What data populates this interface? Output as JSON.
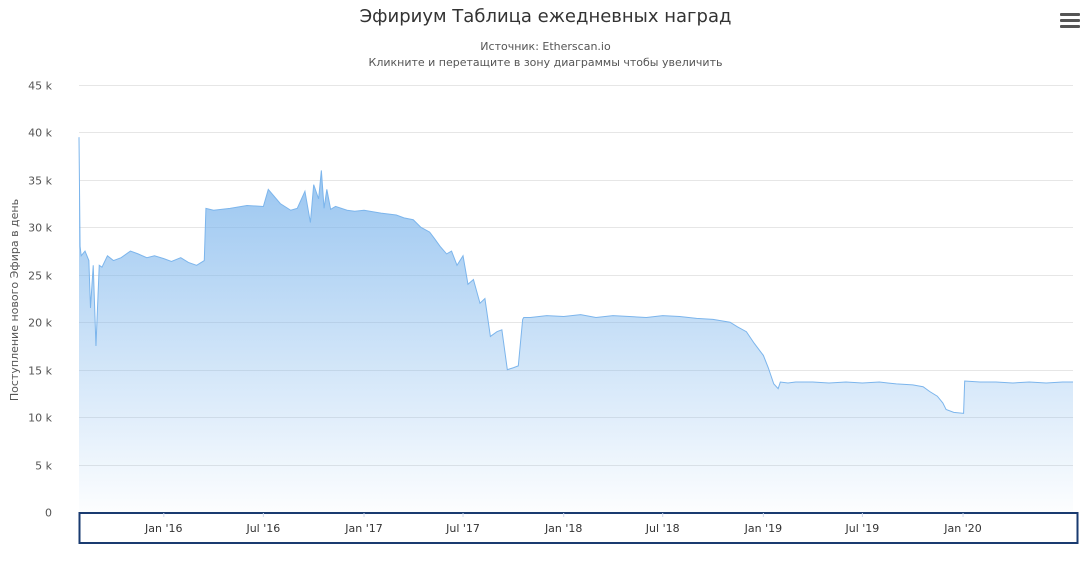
{
  "chart_data": {
    "type": "area",
    "title": "Эфириум Таблица ежедневных наград",
    "subtitle": "Источник: Etherscan.io",
    "caption": "Кликните и перетащите в зону диаграммы чтобы увеличить",
    "ylabel": "Поступление нового Эфира в день",
    "xlabel": "",
    "ylim": [
      0,
      45000
    ],
    "y_ticks": [
      0,
      5000,
      10000,
      15000,
      20000,
      25000,
      30000,
      35000,
      40000,
      45000
    ],
    "y_tick_labels": [
      "0",
      "5 k",
      "10 k",
      "15 k",
      "20 k",
      "25 k",
      "30 k",
      "35 k",
      "40 k",
      "45 k"
    ],
    "x_range": [
      "2015-07-30",
      "2020-07-20"
    ],
    "x_ticks": [
      "2016-01-01",
      "2016-07-01",
      "2017-01-01",
      "2017-07-01",
      "2018-01-01",
      "2018-07-01",
      "2019-01-01",
      "2019-07-01",
      "2020-01-01"
    ],
    "x_tick_labels": [
      "Jan '16",
      "Jul '16",
      "Jan '17",
      "Jul '17",
      "Jan '18",
      "Jul '18",
      "Jan '19",
      "Jul '19",
      "Jan '20"
    ],
    "grid": true,
    "legend": "none",
    "color": "#7cb5ec",
    "series": [
      {
        "x": [
          "2015-07-30",
          "2015-08-01",
          "2015-08-03",
          "2015-08-10",
          "2015-08-17",
          "2015-08-20",
          "2015-08-25",
          "2015-08-30",
          "2015-09-05",
          "2015-09-10",
          "2015-09-20",
          "2015-10-01",
          "2015-10-15",
          "2015-11-01",
          "2015-11-15",
          "2015-12-01",
          "2015-12-15",
          "2016-01-01",
          "2016-01-15",
          "2016-02-01",
          "2016-02-15",
          "2016-03-01",
          "2016-03-15",
          "2016-03-18",
          "2016-04-01",
          "2016-05-01",
          "2016-06-01",
          "2016-07-01",
          "2016-07-10",
          "2016-08-01",
          "2016-08-20",
          "2016-09-01",
          "2016-09-15",
          "2016-09-25",
          "2016-10-01",
          "2016-10-10",
          "2016-10-15",
          "2016-10-20",
          "2016-10-25",
          "2016-11-01",
          "2016-11-10",
          "2016-12-01",
          "2016-12-15",
          "2017-01-01",
          "2017-02-01",
          "2017-03-01",
          "2017-03-15",
          "2017-04-01",
          "2017-04-15",
          "2017-05-01",
          "2017-05-10",
          "2017-05-20",
          "2017-06-01",
          "2017-06-10",
          "2017-06-20",
          "2017-07-01",
          "2017-07-10",
          "2017-07-20",
          "2017-08-01",
          "2017-08-10",
          "2017-08-20",
          "2017-09-01",
          "2017-09-10",
          "2017-09-20",
          "2017-10-01",
          "2017-10-10",
          "2017-10-18",
          "2017-10-20",
          "2017-11-01",
          "2017-12-01",
          "2018-01-01",
          "2018-02-01",
          "2018-03-01",
          "2018-04-01",
          "2018-05-01",
          "2018-06-01",
          "2018-07-01",
          "2018-08-01",
          "2018-09-01",
          "2018-10-01",
          "2018-11-01",
          "2018-11-15",
          "2018-12-01",
          "2018-12-15",
          "2019-01-01",
          "2019-01-10",
          "2019-01-20",
          "2019-01-28",
          "2019-02-01",
          "2019-02-15",
          "2019-03-01",
          "2019-04-01",
          "2019-05-01",
          "2019-06-01",
          "2019-07-01",
          "2019-08-01",
          "2019-09-01",
          "2019-10-01",
          "2019-10-20",
          "2019-11-01",
          "2019-11-15",
          "2019-11-25",
          "2019-12-01",
          "2019-12-15",
          "2020-01-02",
          "2020-01-04",
          "2020-02-01",
          "2020-03-01",
          "2020-04-01",
          "2020-05-01",
          "2020-06-01",
          "2020-07-01",
          "2020-07-20"
        ],
        "values": [
          39500,
          28000,
          27000,
          27500,
          26500,
          21500,
          26000,
          17500,
          26000,
          25800,
          27000,
          26500,
          26800,
          27500,
          27200,
          26800,
          27000,
          26700,
          26400,
          26800,
          26300,
          26000,
          26500,
          32000,
          31800,
          32000,
          32300,
          32200,
          34000,
          32500,
          31800,
          32000,
          33800,
          30500,
          34500,
          33000,
          36000,
          32000,
          34000,
          31900,
          32200,
          31800,
          31700,
          31800,
          31500,
          31300,
          31000,
          30800,
          30000,
          29500,
          28800,
          28000,
          27200,
          27500,
          26000,
          27000,
          24000,
          24500,
          22000,
          22500,
          18500,
          19000,
          19200,
          15000,
          15200,
          15400,
          20300,
          20500,
          20500,
          20700,
          20600,
          20800,
          20500,
          20700,
          20600,
          20500,
          20700,
          20600,
          20400,
          20300,
          20000,
          19500,
          19000,
          17800,
          16500,
          15200,
          13500,
          13000,
          13700,
          13600,
          13700,
          13700,
          13600,
          13700,
          13600,
          13700,
          13500,
          13400,
          13200,
          12700,
          12200,
          11500,
          10800,
          10500,
          10400,
          13800,
          13700,
          13700,
          13600,
          13700,
          13600,
          13700,
          13700
        ]
      }
    ]
  },
  "ui": {
    "menu_icon": "hamburger-menu-icon"
  }
}
